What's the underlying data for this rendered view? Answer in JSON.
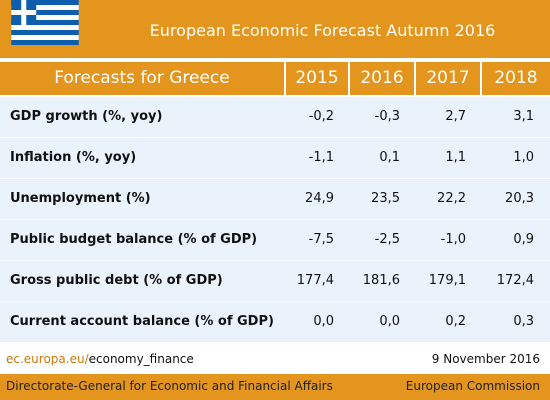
{
  "header": {
    "title": "European Economic Forecast Autumn 2016"
  },
  "table": {
    "columns": [
      "Forecasts for Greece",
      "2015",
      "2016",
      "2017",
      "2018"
    ],
    "rows": [
      [
        "GDP growth (%, yoy)",
        "-0,2",
        "-0,3",
        "2,7",
        "3,1"
      ],
      [
        "Inflation (%, yoy)",
        "-1,1",
        "0,1",
        "1,1",
        "1,0"
      ],
      [
        "Unemployment (%)",
        "24,9",
        "23,5",
        "22,2",
        "20,3"
      ],
      [
        "Public budget balance (% of GDP)",
        "-7,5",
        "-2,5",
        "-1,0",
        "0,9"
      ],
      [
        "Gross public debt (% of GDP)",
        "177,4",
        "181,6",
        "179,1",
        "172,4"
      ],
      [
        "Current account balance (% of GDP)",
        "0,0",
        "0,0",
        "0,2",
        "0,3"
      ]
    ]
  },
  "footer": {
    "link_domain": "ec.europa.eu/",
    "link_path": "economy_finance",
    "date": "9 November 2016",
    "directorate": "Directorate-General for Economic and Financial Affairs",
    "commission": "European Commission"
  }
}
